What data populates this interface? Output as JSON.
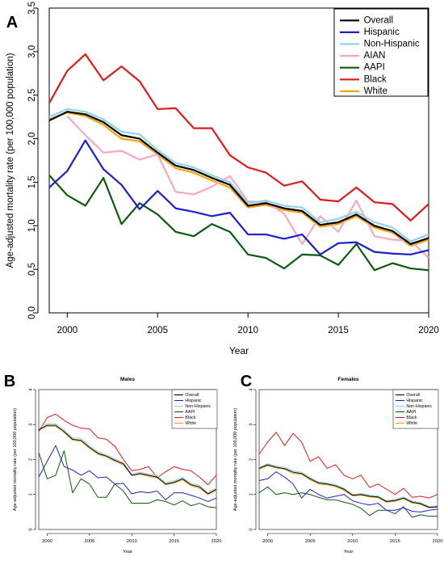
{
  "chart_data": [
    {
      "panel": "A",
      "type": "line",
      "title": "",
      "xlabel": "Year",
      "ylabel": "Age-adjusted mortality rate (per 100,000 population)",
      "xlim": [
        1999,
        2020
      ],
      "ylim": [
        0.0,
        3.5
      ],
      "xticks": [
        2000,
        2005,
        2010,
        2015,
        2020
      ],
      "yticks": [
        "0.0",
        "0.5",
        "1.0",
        "1.5",
        "2.0",
        "2.5",
        "3.0",
        "3.5"
      ],
      "grid": false,
      "legend_position": "top-right",
      "x": [
        1999,
        2000,
        2001,
        2002,
        2003,
        2004,
        2005,
        2006,
        2007,
        2008,
        2009,
        2010,
        2011,
        2012,
        2013,
        2014,
        2015,
        2016,
        2017,
        2018,
        2019,
        2020
      ],
      "series": [
        {
          "name": "Overall",
          "color": "#000000",
          "values": [
            2.21,
            2.31,
            2.28,
            2.19,
            2.04,
            2.0,
            1.84,
            1.69,
            1.64,
            1.55,
            1.47,
            1.23,
            1.26,
            1.2,
            1.17,
            1.01,
            1.04,
            1.13,
            1.0,
            0.94,
            0.79,
            0.86
          ]
        },
        {
          "name": "Hispanic",
          "color": "#1f1fd0",
          "values": [
            1.44,
            1.63,
            1.98,
            1.65,
            1.47,
            1.19,
            1.4,
            1.2,
            1.16,
            1.11,
            1.15,
            0.9,
            0.9,
            0.85,
            0.9,
            0.67,
            0.8,
            0.81,
            0.7,
            0.68,
            0.67,
            0.72
          ]
        },
        {
          "name": "Non-Hispanic",
          "color": "#8fd3e6",
          "values": [
            2.25,
            2.34,
            2.31,
            2.22,
            2.08,
            2.05,
            1.87,
            1.72,
            1.67,
            1.58,
            1.5,
            1.26,
            1.29,
            1.23,
            1.21,
            1.04,
            1.08,
            1.16,
            1.04,
            0.98,
            0.82,
            0.9
          ]
        },
        {
          "name": "AIAN",
          "color": "#f4a8c2",
          "values": [
            null,
            2.26,
            2.04,
            1.84,
            1.86,
            1.76,
            1.82,
            1.39,
            1.36,
            1.45,
            1.57,
            1.28,
            1.27,
            1.14,
            0.79,
            1.11,
            0.93,
            1.29,
            0.88,
            0.84,
            0.83,
            0.63
          ]
        },
        {
          "name": "AAPI",
          "color": "#0d5b0d",
          "values": [
            1.58,
            1.35,
            1.23,
            1.55,
            1.02,
            1.26,
            1.13,
            0.93,
            0.88,
            1.02,
            0.93,
            0.67,
            0.63,
            0.51,
            0.67,
            0.66,
            0.55,
            0.79,
            0.49,
            0.57,
            0.51,
            0.49
          ]
        },
        {
          "name": "Black",
          "color": "#e01a1a",
          "values": [
            2.41,
            2.78,
            2.97,
            2.67,
            2.83,
            2.66,
            2.34,
            2.35,
            2.12,
            2.12,
            1.81,
            1.67,
            1.61,
            1.46,
            1.51,
            1.3,
            1.28,
            1.44,
            1.27,
            1.25,
            1.06,
            1.25
          ]
        },
        {
          "name": "White",
          "color": "#f5a30a",
          "values": [
            2.22,
            2.3,
            2.26,
            2.16,
            2.0,
            1.97,
            1.82,
            1.66,
            1.61,
            1.52,
            1.44,
            1.21,
            1.24,
            1.18,
            1.15,
            0.99,
            1.02,
            1.11,
            0.98,
            0.92,
            0.77,
            0.84
          ]
        }
      ]
    },
    {
      "panel": "B",
      "type": "line",
      "title": "Males",
      "xlabel": "Year",
      "ylabel": "Age-adjusted mortality rate (per 100,000 population)",
      "xlim": [
        1999,
        2020
      ],
      "ylim": [
        0,
        4
      ],
      "xticks": [
        2000,
        2005,
        2010,
        2015,
        2020
      ],
      "yticks": [
        "0",
        "1",
        "2",
        "3",
        "4"
      ],
      "grid": false,
      "legend_position": "top-right",
      "x": [
        1999,
        2000,
        2001,
        2002,
        2003,
        2004,
        2005,
        2006,
        2007,
        2008,
        2009,
        2010,
        2011,
        2012,
        2013,
        2014,
        2015,
        2016,
        2017,
        2018,
        2019,
        2020
      ],
      "series": [
        {
          "name": "Overall",
          "color": "#000000",
          "values": [
            2.85,
            2.98,
            2.98,
            2.8,
            2.58,
            2.55,
            2.35,
            2.18,
            2.1,
            1.98,
            1.88,
            1.55,
            1.6,
            1.55,
            1.5,
            1.3,
            1.35,
            1.45,
            1.28,
            1.22,
            1.02,
            1.15
          ]
        },
        {
          "name": "Hispanic",
          "color": "#1f1fd0",
          "values": [
            1.5,
            1.95,
            2.4,
            1.8,
            1.7,
            1.55,
            1.68,
            1.48,
            1.5,
            1.3,
            1.32,
            1.02,
            1.08,
            1.05,
            1.1,
            0.85,
            1.05,
            1.05,
            0.98,
            0.9,
            0.8,
            0.9
          ]
        },
        {
          "name": "Non-Hispanic",
          "color": "#8fd3e6",
          "values": [
            2.9,
            3.02,
            3.02,
            2.85,
            2.62,
            2.6,
            2.4,
            2.22,
            2.14,
            2.02,
            1.92,
            1.58,
            1.64,
            1.58,
            1.54,
            1.34,
            1.39,
            1.49,
            1.32,
            1.26,
            1.06,
            1.19
          ]
        },
        {
          "name": "AAPI",
          "color": "#0d5b0d",
          "values": [
            2.2,
            1.45,
            1.55,
            2.25,
            1.05,
            1.45,
            1.3,
            0.92,
            0.92,
            1.3,
            1.1,
            0.75,
            0.75,
            0.75,
            0.85,
            0.8,
            0.7,
            0.82,
            0.68,
            0.75,
            0.65,
            0.62
          ]
        },
        {
          "name": "Black",
          "color": "#e01a1a",
          "values": [
            2.8,
            3.2,
            3.3,
            3.12,
            2.98,
            2.9,
            2.88,
            2.62,
            2.58,
            2.38,
            2.0,
            1.68,
            1.72,
            1.8,
            1.48,
            1.65,
            1.8,
            1.72,
            1.68,
            1.5,
            1.28,
            1.55
          ]
        },
        {
          "name": "White",
          "color": "#f5a30a",
          "values": [
            2.85,
            2.95,
            2.95,
            2.78,
            2.55,
            2.52,
            2.32,
            2.15,
            2.08,
            1.95,
            1.85,
            1.55,
            1.58,
            1.52,
            1.48,
            1.28,
            1.32,
            1.42,
            1.25,
            1.18,
            1.0,
            1.12
          ]
        }
      ]
    },
    {
      "panel": "C",
      "type": "line",
      "title": "Females",
      "xlabel": "Year",
      "ylabel": "Age-adjusted mortality rate (per 100,000 population)",
      "xlim": [
        1999,
        2020
      ],
      "ylim": [
        0,
        4
      ],
      "xticks": [
        2000,
        2005,
        2010,
        2015,
        2020
      ],
      "yticks": [
        "0",
        "1",
        "2",
        "3",
        "4"
      ],
      "grid": false,
      "legend_position": "top-right",
      "x": [
        1999,
        2000,
        2001,
        2002,
        2003,
        2004,
        2005,
        2006,
        2007,
        2008,
        2009,
        2010,
        2011,
        2012,
        2013,
        2014,
        2015,
        2016,
        2017,
        2018,
        2019,
        2020
      ],
      "series": [
        {
          "name": "Overall",
          "color": "#000000",
          "values": [
            1.75,
            1.85,
            1.78,
            1.74,
            1.64,
            1.6,
            1.45,
            1.33,
            1.3,
            1.25,
            1.15,
            0.98,
            1.0,
            0.95,
            0.93,
            0.8,
            0.83,
            0.9,
            0.78,
            0.74,
            0.63,
            0.65
          ]
        },
        {
          "name": "Hispanic",
          "color": "#1f1fd0",
          "values": [
            1.4,
            1.45,
            1.65,
            1.5,
            1.3,
            0.9,
            1.15,
            1.0,
            0.9,
            0.95,
            1.0,
            0.82,
            0.75,
            0.7,
            0.75,
            0.55,
            0.55,
            0.62,
            0.52,
            0.5,
            0.55,
            0.58
          ]
        },
        {
          "name": "Non-Hispanic",
          "color": "#8fd3e6",
          "values": [
            1.78,
            1.88,
            1.82,
            1.78,
            1.68,
            1.64,
            1.48,
            1.36,
            1.33,
            1.28,
            1.18,
            1.0,
            1.03,
            0.98,
            0.96,
            0.82,
            0.86,
            0.93,
            0.81,
            0.77,
            0.66,
            0.68
          ]
        },
        {
          "name": "AAPI",
          "color": "#0d5b0d",
          "values": [
            1.05,
            1.22,
            1.0,
            1.05,
            1.0,
            1.05,
            1.0,
            0.92,
            0.85,
            0.85,
            0.78,
            0.72,
            0.6,
            0.4,
            0.55,
            0.55,
            0.45,
            0.65,
            0.35,
            0.42,
            0.38,
            0.38
          ]
        },
        {
          "name": "Black",
          "color": "#e01a1a",
          "values": [
            2.15,
            2.5,
            2.78,
            2.4,
            2.75,
            2.5,
            1.95,
            2.08,
            1.75,
            1.85,
            1.55,
            1.45,
            1.55,
            1.2,
            1.3,
            1.15,
            1.0,
            1.18,
            0.92,
            0.95,
            0.9,
            1.0
          ]
        },
        {
          "name": "White",
          "color": "#f5a30a",
          "values": [
            1.72,
            1.82,
            1.76,
            1.72,
            1.6,
            1.58,
            1.42,
            1.3,
            1.28,
            1.22,
            1.12,
            0.96,
            0.98,
            0.93,
            0.91,
            0.78,
            0.8,
            0.88,
            0.76,
            0.72,
            0.62,
            0.64
          ]
        }
      ]
    }
  ]
}
